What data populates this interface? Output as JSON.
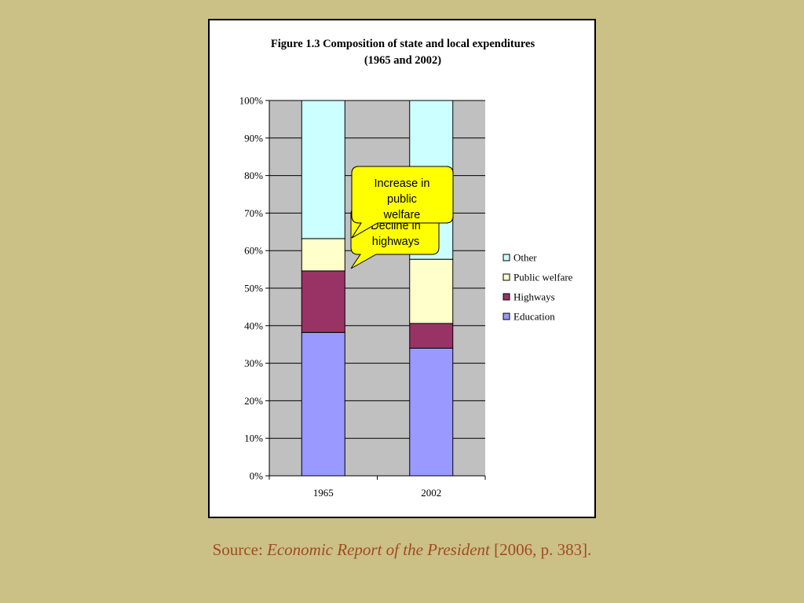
{
  "colors": {
    "background": "#cbc086",
    "plot_area": "#c0c0c0",
    "gridline": "#000000",
    "callout_fill": "#ffff00",
    "source_text": "#a34a22"
  },
  "chart_data": {
    "type": "bar",
    "stacked": true,
    "title": "Figure 1.3 Composition of state and local expenditures",
    "subtitle": "(1965 and 2002)",
    "categories": [
      "1965",
      "2002"
    ],
    "ylim": [
      0,
      100
    ],
    "y_ticks": [
      "0%",
      "10%",
      "20%",
      "30%",
      "40%",
      "50%",
      "60%",
      "70%",
      "80%",
      "90%",
      "100%"
    ],
    "grid": true,
    "legend_position": "right",
    "series": [
      {
        "name": "Education",
        "color": "#9999ff",
        "values": [
          38.2,
          34.0
        ]
      },
      {
        "name": "Highways",
        "color": "#993366",
        "values": [
          16.4,
          6.6
        ]
      },
      {
        "name": "Public welfare",
        "color": "#ffffcc",
        "values": [
          8.6,
          17.1
        ]
      },
      {
        "name": "Other",
        "color": "#ccffff",
        "values": [
          36.8,
          42.3
        ]
      }
    ],
    "legend_order": [
      "Other",
      "Public welfare",
      "Highways",
      "Education"
    ],
    "annotations": [
      {
        "lines": [
          "Decline in",
          "highways"
        ]
      },
      {
        "lines": [
          "Increase in",
          "public",
          "welfare"
        ]
      }
    ]
  },
  "source": {
    "prefix": "Source: ",
    "title": "Economic Report of the President",
    "suffix": " [2006, p. 383]."
  }
}
